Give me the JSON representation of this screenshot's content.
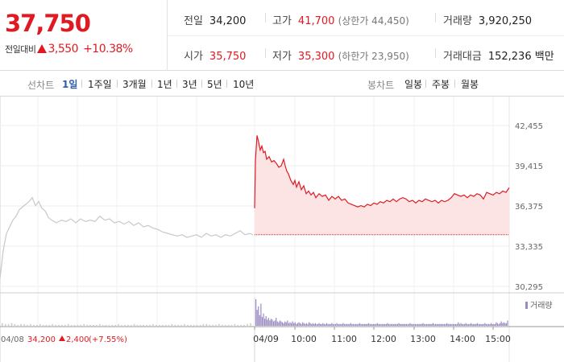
{
  "quote": {
    "price": "37,750",
    "change_label": "전일대비",
    "change_abs": "3,550",
    "change_pct": "+10.38%",
    "prev_close_label": "전일",
    "prev_close": "34,200",
    "open_label": "시가",
    "open": "35,750",
    "high_label": "고가",
    "high": "41,700",
    "upper_limit_text": "(상한가 44,450)",
    "low_label": "저가",
    "low": "35,300",
    "lower_limit_text": "(하한가 23,950)",
    "volume_label": "거래량",
    "volume": "3,920,250",
    "amount_label": "거래대금",
    "amount": "152,236 백만"
  },
  "tabs": {
    "line_title": "선차트",
    "line_items": [
      "1일",
      "1주일",
      "3개월",
      "1년",
      "3년",
      "5년",
      "10년"
    ],
    "line_active": "1일",
    "candle_title": "봉차트",
    "candle_items": [
      "일봉",
      "주봉",
      "월봉"
    ]
  },
  "colors": {
    "up": "#e01a22",
    "prev_day_line": "#c8c8c8",
    "area_fill": "#fde4e4",
    "volume_today": "#9b8ac4",
    "volume_prev": "#cccccc",
    "active_tab": "#2e5ca8"
  },
  "chart_data": {
    "type": "line",
    "y_ticks": [
      "42,455",
      "39,415",
      "36,375",
      "33,335",
      "30,295"
    ],
    "ylim": [
      30295,
      42455
    ],
    "x_labels": [
      "04/08",
      "04/09",
      "10:00",
      "11:00",
      "12:00",
      "13:00",
      "14:00",
      "15:00"
    ],
    "prev_day_info": {
      "date": "04/08",
      "close": "34,200",
      "change": "2,400",
      "pct": "(+7.55%)"
    },
    "reference_line": 34200,
    "volume_legend": "거래량",
    "series": [
      {
        "date": "04/08",
        "points": [
          [
            0,
            30900
          ],
          [
            4,
            33000
          ],
          [
            8,
            34300
          ],
          [
            12,
            34800
          ],
          [
            16,
            35300
          ],
          [
            20,
            35600
          ],
          [
            24,
            36100
          ],
          [
            28,
            36300
          ],
          [
            32,
            36500
          ],
          [
            36,
            36700
          ],
          [
            40,
            37000
          ],
          [
            44,
            36400
          ],
          [
            48,
            36700
          ],
          [
            52,
            36200
          ],
          [
            56,
            36000
          ],
          [
            60,
            35500
          ],
          [
            64,
            35300
          ],
          [
            70,
            35100
          ],
          [
            76,
            35300
          ],
          [
            82,
            35200
          ],
          [
            88,
            35400
          ],
          [
            94,
            35100
          ],
          [
            100,
            35400
          ],
          [
            106,
            35200
          ],
          [
            112,
            35300
          ],
          [
            118,
            35200
          ],
          [
            124,
            35600
          ],
          [
            130,
            35300
          ],
          [
            136,
            35400
          ],
          [
            142,
            35100
          ],
          [
            148,
            35200
          ],
          [
            154,
            35000
          ],
          [
            160,
            35200
          ],
          [
            166,
            34900
          ],
          [
            172,
            35100
          ],
          [
            178,
            34800
          ],
          [
            184,
            34900
          ],
          [
            190,
            34700
          ],
          [
            196,
            34600
          ],
          [
            202,
            34400
          ],
          [
            208,
            34300
          ],
          [
            214,
            34200
          ],
          [
            220,
            34100
          ],
          [
            226,
            34200
          ],
          [
            232,
            34000
          ],
          [
            238,
            34100
          ],
          [
            244,
            34200
          ],
          [
            250,
            34000
          ],
          [
            256,
            34300
          ],
          [
            262,
            34100
          ],
          [
            268,
            34200
          ],
          [
            274,
            34000
          ],
          [
            280,
            34200
          ],
          [
            286,
            34100
          ],
          [
            292,
            34300
          ],
          [
            298,
            34500
          ],
          [
            304,
            34200
          ],
          [
            310,
            34300
          ],
          [
            314,
            34200
          ]
        ]
      },
      {
        "date": "04/09",
        "points": [
          [
            0,
            36200
          ],
          [
            1,
            39800
          ],
          [
            3,
            41700
          ],
          [
            5,
            41200
          ],
          [
            7,
            40600
          ],
          [
            9,
            40900
          ],
          [
            11,
            40400
          ],
          [
            13,
            40500
          ],
          [
            15,
            39900
          ],
          [
            18,
            40100
          ],
          [
            21,
            39700
          ],
          [
            24,
            39800
          ],
          [
            27,
            39600
          ],
          [
            30,
            39300
          ],
          [
            33,
            39400
          ],
          [
            36,
            39900
          ],
          [
            38,
            39400
          ],
          [
            40,
            39000
          ],
          [
            42,
            38800
          ],
          [
            45,
            38300
          ],
          [
            48,
            38000
          ],
          [
            50,
            38300
          ],
          [
            52,
            37800
          ],
          [
            55,
            38200
          ],
          [
            58,
            37600
          ],
          [
            61,
            37900
          ],
          [
            64,
            37300
          ],
          [
            67,
            37500
          ],
          [
            70,
            37200
          ],
          [
            73,
            37400
          ],
          [
            76,
            37000
          ],
          [
            80,
            37300
          ],
          [
            84,
            37100
          ],
          [
            88,
            37200
          ],
          [
            92,
            36800
          ],
          [
            96,
            37100
          ],
          [
            100,
            36900
          ],
          [
            104,
            37100
          ],
          [
            108,
            36800
          ],
          [
            112,
            36900
          ],
          [
            116,
            36600
          ],
          [
            120,
            36500
          ],
          [
            124,
            36400
          ],
          [
            128,
            36300
          ],
          [
            132,
            36400
          ],
          [
            136,
            36300
          ],
          [
            140,
            36500
          ],
          [
            144,
            36400
          ],
          [
            148,
            36600
          ],
          [
            152,
            36500
          ],
          [
            156,
            36700
          ],
          [
            160,
            36600
          ],
          [
            164,
            36800
          ],
          [
            168,
            36700
          ],
          [
            172,
            36900
          ],
          [
            176,
            36700
          ],
          [
            180,
            36900
          ],
          [
            184,
            37000
          ],
          [
            188,
            36900
          ],
          [
            192,
            36700
          ],
          [
            196,
            36800
          ],
          [
            200,
            36600
          ],
          [
            204,
            36800
          ],
          [
            208,
            36700
          ],
          [
            212,
            36900
          ],
          [
            216,
            36800
          ],
          [
            220,
            36700
          ],
          [
            224,
            36800
          ],
          [
            228,
            36600
          ],
          [
            232,
            36800
          ],
          [
            236,
            36700
          ],
          [
            240,
            36800
          ],
          [
            244,
            37000
          ],
          [
            248,
            37300
          ],
          [
            252,
            37200
          ],
          [
            256,
            37100
          ],
          [
            260,
            37200
          ],
          [
            264,
            37000
          ],
          [
            268,
            37200
          ],
          [
            272,
            37100
          ],
          [
            276,
            37300
          ],
          [
            280,
            37200
          ],
          [
            284,
            36900
          ],
          [
            288,
            37400
          ],
          [
            292,
            37300
          ],
          [
            296,
            37200
          ],
          [
            300,
            37400
          ],
          [
            304,
            37300
          ],
          [
            308,
            37500
          ],
          [
            312,
            37400
          ],
          [
            316,
            37750
          ]
        ]
      }
    ],
    "volume": {
      "prev_day": [
        3,
        2,
        2,
        3,
        2,
        1,
        2,
        2,
        1,
        2,
        1,
        1,
        2,
        1,
        1,
        1,
        2,
        1,
        1,
        1,
        1,
        2,
        1,
        1,
        1,
        1,
        2,
        1,
        1,
        1,
        1,
        2,
        1,
        1,
        1,
        1,
        1,
        2,
        1,
        1,
        1,
        1,
        2,
        1,
        1,
        1,
        1,
        1,
        2,
        1,
        1,
        1,
        1,
        1,
        2,
        1,
        1,
        1,
        2,
        1,
        1,
        1,
        1,
        1,
        2,
        2,
        1,
        1,
        1,
        2,
        1,
        1,
        1,
        1,
        2,
        1,
        1,
        1,
        2,
        3
      ],
      "today": [
        30,
        18,
        22,
        12,
        25,
        10,
        14,
        8,
        11,
        7,
        9,
        6,
        8,
        7,
        5,
        6,
        9,
        5,
        4,
        6,
        5,
        4,
        3,
        5,
        4,
        6,
        3,
        4,
        3,
        5,
        3,
        4,
        2,
        3,
        4,
        3,
        2,
        4,
        3,
        2,
        3,
        2,
        4,
        3,
        2,
        3,
        2,
        3,
        2,
        2,
        3,
        2,
        2,
        3,
        2,
        2,
        3,
        2,
        2,
        2,
        3,
        2,
        2,
        2,
        3,
        2,
        2,
        2,
        2,
        3,
        2,
        2,
        2,
        2,
        2,
        3,
        2,
        2,
        2,
        2,
        2,
        2,
        3,
        2,
        2,
        2,
        2,
        2,
        2,
        3,
        2,
        2,
        2,
        2,
        2,
        2,
        3,
        2,
        2,
        2,
        2,
        2,
        2,
        2,
        3,
        2,
        2,
        2,
        2,
        2,
        2,
        2,
        2,
        3,
        2,
        2,
        2,
        2,
        2,
        2,
        2,
        2,
        3,
        2,
        2,
        2,
        2,
        2,
        2,
        2,
        2,
        2,
        3,
        2,
        2,
        2,
        2,
        2,
        2,
        2,
        3,
        2,
        2,
        2,
        2,
        2,
        2,
        2,
        2,
        2,
        2,
        3,
        2,
        2,
        2,
        2,
        2,
        2,
        2,
        2,
        4,
        2,
        3,
        2,
        2,
        2,
        3,
        2,
        2,
        2,
        3,
        2,
        2,
        2,
        2,
        3,
        2,
        2,
        2,
        2,
        2,
        3,
        2,
        2,
        2,
        2,
        3,
        2,
        2,
        2,
        4,
        3,
        2,
        3,
        5,
        3,
        4,
        3,
        3,
        6
      ]
    }
  }
}
